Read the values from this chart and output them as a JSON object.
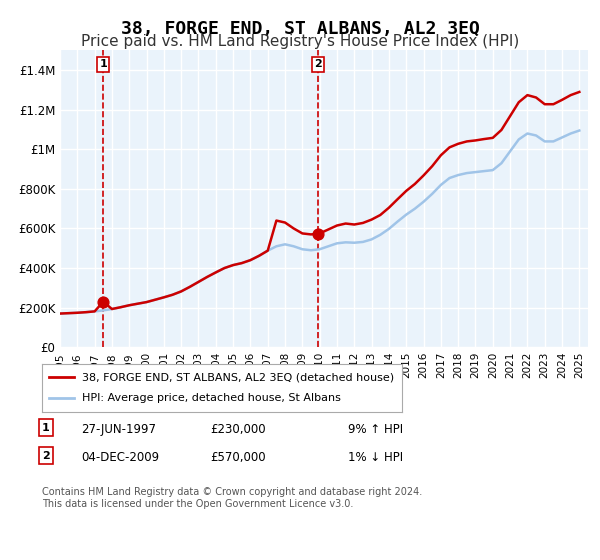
{
  "title": "38, FORGE END, ST ALBANS, AL2 3EQ",
  "subtitle": "Price paid vs. HM Land Registry's House Price Index (HPI)",
  "legend_line1": "38, FORGE END, ST ALBANS, AL2 3EQ (detached house)",
  "legend_line2": "HPI: Average price, detached house, St Albans",
  "annotation1_label": "1",
  "annotation1_date": "27-JUN-1997",
  "annotation1_price": "£230,000",
  "annotation1_hpi": "9% ↑ HPI",
  "annotation1_year": 1997.5,
  "annotation1_value": 230000,
  "annotation2_label": "2",
  "annotation2_date": "04-DEC-2009",
  "annotation2_price": "£570,000",
  "annotation2_hpi": "1% ↓ HPI",
  "annotation2_year": 2009.92,
  "annotation2_value": 570000,
  "footer": "Contains HM Land Registry data © Crown copyright and database right 2024.\nThis data is licensed under the Open Government Licence v3.0.",
  "xmin": 1995,
  "xmax": 2025.5,
  "ymin": 0,
  "ymax": 1500000,
  "yticks": [
    0,
    200000,
    400000,
    600000,
    800000,
    1000000,
    1200000,
    1400000
  ],
  "ytick_labels": [
    "£0",
    "£200K",
    "£400K",
    "£600K",
    "£800K",
    "£1M",
    "£1.2M",
    "£1.4M"
  ],
  "background_color": "#eaf3fb",
  "plot_bg_color": "#eaf3fb",
  "grid_color": "#ffffff",
  "hpi_color": "#a0c4e8",
  "price_color": "#cc0000",
  "dashed_color": "#cc0000",
  "title_fontsize": 13,
  "subtitle_fontsize": 11,
  "years": [
    1995,
    1995.5,
    1996,
    1996.5,
    1997,
    1997.5,
    1998,
    1998.5,
    1999,
    1999.5,
    2000,
    2000.5,
    2001,
    2001.5,
    2002,
    2002.5,
    2003,
    2003.5,
    2004,
    2004.5,
    2005,
    2005.5,
    2006,
    2006.5,
    2007,
    2007.5,
    2008,
    2008.5,
    2009,
    2009.5,
    2010,
    2010.5,
    2011,
    2011.5,
    2012,
    2012.5,
    2013,
    2013.5,
    2014,
    2014.5,
    2015,
    2015.5,
    2016,
    2016.5,
    2017,
    2017.5,
    2018,
    2018.5,
    2019,
    2019.5,
    2020,
    2020.5,
    2021,
    2021.5,
    2022,
    2022.5,
    2023,
    2023.5,
    2024,
    2024.5,
    2025
  ],
  "hpi_values": [
    170000,
    172000,
    174000,
    177000,
    181000,
    186000,
    193000,
    202000,
    212000,
    220000,
    228000,
    240000,
    252000,
    265000,
    282000,
    305000,
    330000,
    355000,
    378000,
    400000,
    415000,
    425000,
    440000,
    462000,
    488000,
    510000,
    520000,
    510000,
    495000,
    490000,
    495000,
    510000,
    525000,
    530000,
    528000,
    532000,
    545000,
    568000,
    598000,
    635000,
    670000,
    700000,
    735000,
    775000,
    820000,
    855000,
    870000,
    880000,
    885000,
    890000,
    895000,
    930000,
    990000,
    1050000,
    1080000,
    1070000,
    1040000,
    1040000,
    1060000,
    1080000,
    1095000
  ],
  "price_values": [
    170000,
    172000,
    174000,
    177000,
    181000,
    230000,
    193000,
    202000,
    212000,
    220000,
    228000,
    240000,
    252000,
    265000,
    282000,
    305000,
    330000,
    355000,
    378000,
    400000,
    415000,
    425000,
    440000,
    462000,
    488000,
    640000,
    630000,
    600000,
    575000,
    570000,
    575000,
    595000,
    615000,
    625000,
    620000,
    628000,
    645000,
    668000,
    705000,
    748000,
    790000,
    825000,
    868000,
    915000,
    970000,
    1010000,
    1028000,
    1040000,
    1045000,
    1052000,
    1058000,
    1098000,
    1168000,
    1238000,
    1274000,
    1262000,
    1228000,
    1228000,
    1250000,
    1274000,
    1290000
  ]
}
